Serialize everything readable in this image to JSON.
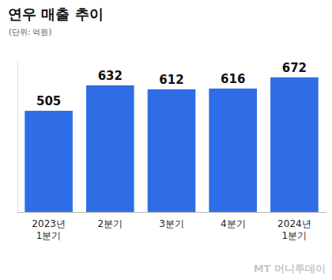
{
  "chart_data": {
    "type": "bar",
    "title": "연우 매출 추이",
    "subtitle": "(단위: 억원)",
    "categories": [
      "2023년\n1분기",
      "2분기",
      "3분기",
      "4분기",
      "2024년\n1분기"
    ],
    "values": [
      505,
      632,
      612,
      616,
      672
    ],
    "color": "#2f6de6",
    "ylim": [
      0,
      750
    ],
    "yticks": [],
    "grid": false,
    "data_labels": true,
    "tick_labels": "x",
    "annotations": [
      "MT 머니투데이"
    ]
  }
}
